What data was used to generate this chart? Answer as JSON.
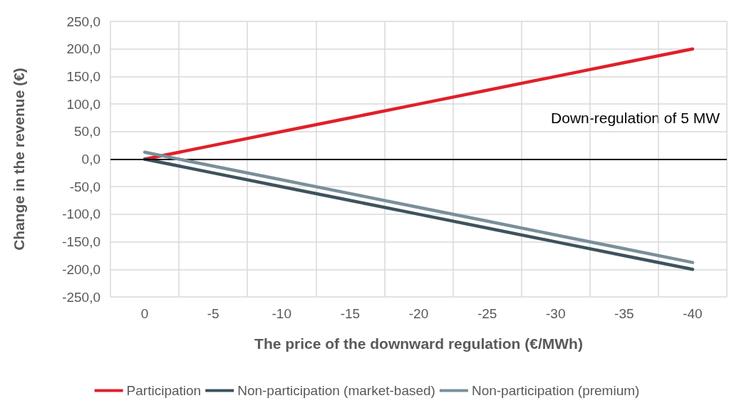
{
  "chart_data": {
    "type": "line",
    "xlabel": "The price of the downward regulation (€/MWh)",
    "ylabel": "Change in the revenue (€)",
    "annotations": [
      "Down-regulation of 5 MW"
    ],
    "categories": [
      "0",
      "-5",
      "-10",
      "-15",
      "-20",
      "-25",
      "-30",
      "-35",
      "-40"
    ],
    "series": [
      {
        "name": "Participation",
        "color": "#e0202a",
        "values": [
          0,
          25,
          50,
          75,
          100,
          125,
          150,
          175,
          200
        ]
      },
      {
        "name": "Non-participation (market-based)",
        "color": "#3d535e",
        "values": [
          0,
          -25,
          -50,
          -75,
          -100,
          -125,
          -150,
          -175,
          -200
        ]
      },
      {
        "name": "Non-participation (premium)",
        "color": "#7a8f9a",
        "values": [
          12.5,
          -12.5,
          -37.5,
          -62.5,
          -87.5,
          -112.5,
          -137.5,
          -162.5,
          -187.5
        ]
      }
    ],
    "ylim": [
      -250,
      250
    ],
    "yticks": [
      {
        "value": -250,
        "label": "-250,0"
      },
      {
        "value": -200,
        "label": "-200,0"
      },
      {
        "value": -150,
        "label": "-150,0"
      },
      {
        "value": -100,
        "label": "-100,0"
      },
      {
        "value": -50,
        "label": "-50,0"
      },
      {
        "value": 0,
        "label": "0,0"
      },
      {
        "value": 50,
        "label": "50,0"
      },
      {
        "value": 100,
        "label": "100,0"
      },
      {
        "value": 150,
        "label": "150,0"
      },
      {
        "value": 200,
        "label": "200,0"
      },
      {
        "value": 250,
        "label": "250,0"
      }
    ],
    "ref_lines": [
      {
        "axis": "y",
        "value": 0,
        "label": null,
        "color": "#000000"
      }
    ],
    "grid": true,
    "legend": "bottom",
    "marker": "none",
    "line_style": "solid"
  }
}
